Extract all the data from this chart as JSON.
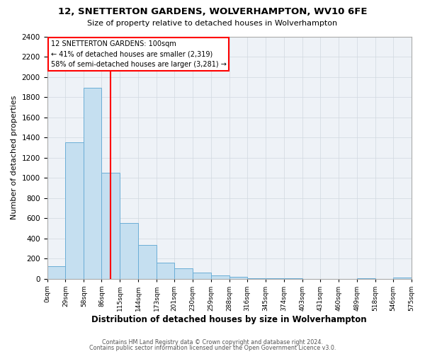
{
  "title": "12, SNETTERTON GARDENS, WOLVERHAMPTON, WV10 6FE",
  "subtitle": "Size of property relative to detached houses in Wolverhampton",
  "xlabel": "Distribution of detached houses by size in Wolverhampton",
  "ylabel": "Number of detached properties",
  "footer_line1": "Contains HM Land Registry data © Crown copyright and database right 2024.",
  "footer_line2": "Contains public sector information licensed under the Open Government Licence v3.0.",
  "bin_edges": [
    0,
    29,
    58,
    86,
    115,
    144,
    173,
    201,
    230,
    259,
    288,
    316,
    345,
    374,
    403,
    431,
    460,
    489,
    518,
    546,
    575
  ],
  "bar_heights": [
    120,
    1350,
    1890,
    1050,
    550,
    335,
    155,
    105,
    60,
    30,
    15,
    5,
    2,
    1,
    0,
    0,
    0,
    5,
    0,
    10
  ],
  "bar_color": "#c5dff0",
  "bar_edge_color": "#6baed6",
  "grid_color": "#d0d8e0",
  "reference_line_x": 100,
  "reference_line_color": "red",
  "annotation_line1": "12 SNETTERTON GARDENS: 100sqm",
  "annotation_line2": "← 41% of detached houses are smaller (2,319)",
  "annotation_line3": "58% of semi-detached houses are larger (3,281) →",
  "ylim": [
    0,
    2400
  ],
  "yticks": [
    0,
    200,
    400,
    600,
    800,
    1000,
    1200,
    1400,
    1600,
    1800,
    2000,
    2200,
    2400
  ],
  "tick_labels": [
    "0sqm",
    "29sqm",
    "58sqm",
    "86sqm",
    "115sqm",
    "144sqm",
    "173sqm",
    "201sqm",
    "230sqm",
    "259sqm",
    "288sqm",
    "316sqm",
    "345sqm",
    "374sqm",
    "403sqm",
    "431sqm",
    "460sqm",
    "489sqm",
    "518sqm",
    "546sqm",
    "575sqm"
  ],
  "background_color": "#eef2f7"
}
